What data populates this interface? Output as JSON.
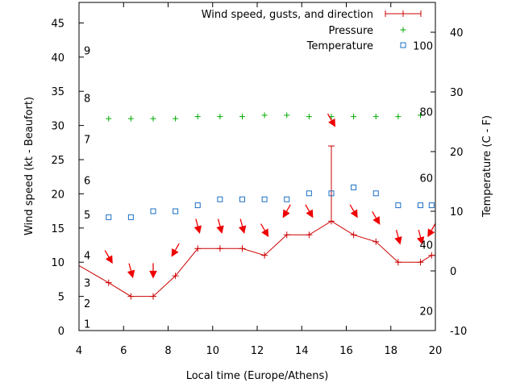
{
  "chart_data": {
    "type": "line",
    "title": "",
    "xlabel": "Local time (Europe/Athens)",
    "ylabel_left": "Wind speed (kt - Beaufort)",
    "ylabel_right": "Temperature (C - F)",
    "xlim": [
      4,
      20
    ],
    "x_ticks": [
      4,
      6,
      8,
      10,
      12,
      14,
      16,
      18,
      20
    ],
    "ylim_left": [
      0,
      48
    ],
    "y_ticks_left": [
      0,
      5,
      10,
      15,
      20,
      25,
      30,
      35,
      40,
      45
    ],
    "ylim_right": [
      -10,
      45
    ],
    "y_ticks_right": [
      -10,
      0,
      10,
      20,
      30,
      40
    ],
    "beaufort_labels": [
      {
        "label": "1",
        "kt": 1
      },
      {
        "label": "2",
        "kt": 4
      },
      {
        "label": "3",
        "kt": 7
      },
      {
        "label": "4",
        "kt": 11
      },
      {
        "label": "5",
        "kt": 17
      },
      {
        "label": "6",
        "kt": 22
      },
      {
        "label": "7",
        "kt": 28
      },
      {
        "label": "8",
        "kt": 34
      },
      {
        "label": "9",
        "kt": 41
      }
    ],
    "fahrenheit_labels": [
      {
        "label": "20",
        "c": -6.7
      },
      {
        "label": "40",
        "c": 4.4
      },
      {
        "label": "60",
        "c": 15.6
      },
      {
        "label": "80",
        "c": 26.7
      },
      {
        "label": "100",
        "c": 37.8
      }
    ],
    "legend_position": "top-right",
    "colors": {
      "wind": "#cc0000",
      "pressure": "#00aa00",
      "temperature": "#1a6fc4",
      "arrow": "#ee0000"
    },
    "series": [
      {
        "name": "Wind speed, gusts, and direction",
        "x": [
          4,
          5.33,
          6.33,
          7.33,
          8.33,
          9.33,
          10.33,
          11.33,
          12.33,
          13.33,
          14.33,
          15.33,
          16.33,
          17.33,
          18.33,
          19.33,
          19.83,
          20
        ],
        "y": [
          9.5,
          7,
          5,
          5,
          8,
          12,
          12,
          12,
          11,
          14,
          14,
          16,
          14,
          13,
          10,
          10,
          11,
          11
        ],
        "gust": [
          {
            "x": 15.33,
            "y": 27
          }
        ]
      },
      {
        "name": "Pressure",
        "x": [
          5.33,
          6.33,
          7.33,
          8.33,
          9.33,
          10.33,
          11.33,
          12.33,
          13.33,
          14.33,
          15.33,
          16.33,
          17.33,
          18.33,
          19.33
        ],
        "y": [
          31,
          31,
          31,
          31,
          31.3,
          31.3,
          31.3,
          31.5,
          31.5,
          31.3,
          31.3,
          31.3,
          31.3,
          31.3,
          31.5
        ]
      },
      {
        "name": "Temperature",
        "x": [
          5.33,
          6.33,
          7.33,
          8.33,
          9.33,
          10.33,
          11.33,
          12.33,
          13.33,
          14.33,
          15.33,
          16.33,
          17.33,
          18.33,
          19.33,
          19.83
        ],
        "y": [
          9,
          9,
          10,
          10,
          11,
          12,
          12,
          12,
          12,
          13,
          13,
          14,
          13,
          11,
          11,
          11
        ]
      }
    ],
    "wind_direction": [
      {
        "x": 5.33,
        "y": 10.8,
        "angle": 60
      },
      {
        "x": 6.33,
        "y": 8.8,
        "angle": 75
      },
      {
        "x": 7.33,
        "y": 8.8,
        "angle": 90
      },
      {
        "x": 8.33,
        "y": 11.8,
        "angle": 120
      },
      {
        "x": 9.33,
        "y": 15.3,
        "angle": 75
      },
      {
        "x": 10.33,
        "y": 15.3,
        "angle": 75
      },
      {
        "x": 11.33,
        "y": 15.3,
        "angle": 75
      },
      {
        "x": 12.33,
        "y": 14.7,
        "angle": 60
      },
      {
        "x": 13.33,
        "y": 17.5,
        "angle": 120
      },
      {
        "x": 14.33,
        "y": 17.5,
        "angle": 60
      },
      {
        "x": 15.33,
        "y": 30.8,
        "angle": 60
      },
      {
        "x": 16.33,
        "y": 17.5,
        "angle": 60
      },
      {
        "x": 17.33,
        "y": 16.5,
        "angle": 60
      },
      {
        "x": 18.33,
        "y": 13.7,
        "angle": 75
      },
      {
        "x": 19.33,
        "y": 13.7,
        "angle": 75
      },
      {
        "x": 19.83,
        "y": 14.7,
        "angle": 120
      }
    ]
  }
}
